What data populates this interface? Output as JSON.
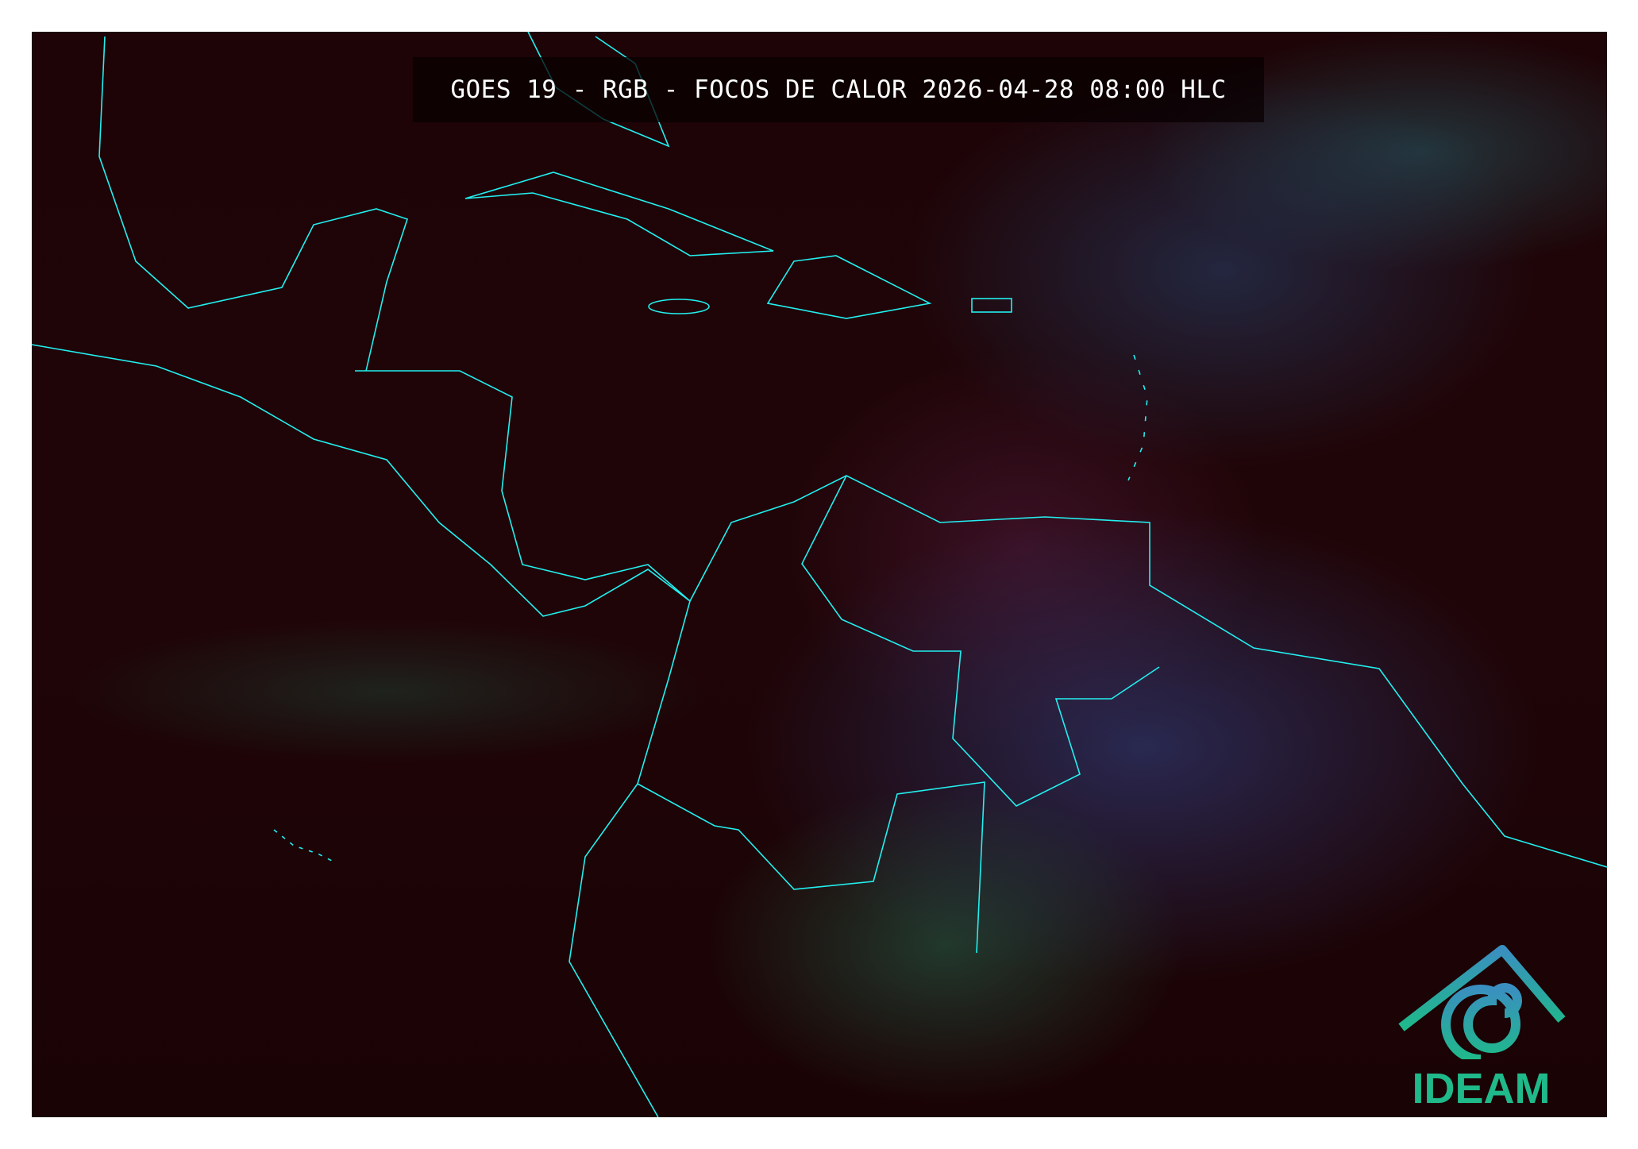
{
  "map": {
    "title": "GOES 19 - RGB - FOCOS DE CALOR 2026-04-28 08:00 HLC",
    "coastline_color": "#22f0f0",
    "background_color": "#1e0407"
  },
  "logo": {
    "text": "IDEAM",
    "icon": "ideam-mountain-spiral-logo",
    "color_top": "#3a8fc0",
    "color_bottom": "#1fb98a"
  }
}
